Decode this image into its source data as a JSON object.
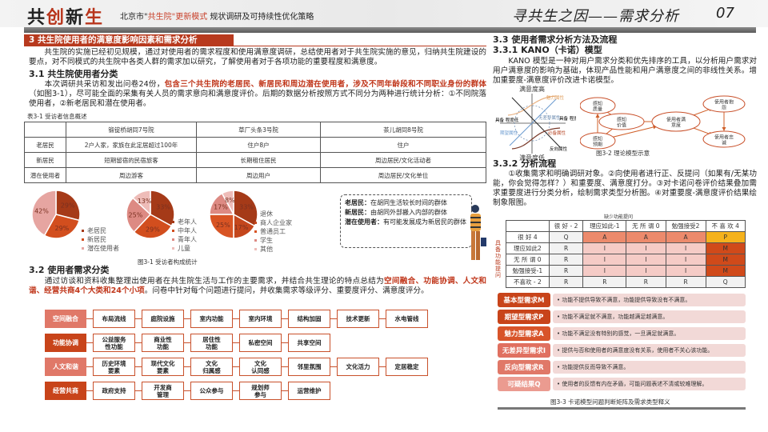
{
  "header": {
    "brand_1": "共",
    "brand_2": "创",
    "brand_3": "新",
    "brand_4": "生",
    "subtitle_pre": "北京市\"",
    "subtitle_red": "共生院\"更新模式",
    "subtitle_post": " 规状调研及可持续性优化策略",
    "section_title": "寻共生之因——需求分析",
    "page_number": "07"
  },
  "left": {
    "section_title": "3 共生院使用者的满意度影响因素和需求分析",
    "intro": "　　共生院的实施已经初见规模，通过对使用者的需求程度和使用满意度调研，总结使用者对于共生院实施的意见，归纳共生院建设的要点，对不同模式的共生院中各类人群的需求加以研究，了解使用者对于各项功能的重要程度和满意度。",
    "h31": "3.1 共生院使用者分类",
    "p31": [
      "　　本次调研共采访和发出问卷24份，",
      "包含三个共生院的老居民、新居民和周边潜在使用者，涉及不同年龄段和不同职业身份的群体",
      "（如图3-1），尽可能全面的采集有关人员的需求意向和满意度评价。后期的数据分析按照方式不同分为两种进行统计分析：①不同院落使用者，②新老居民和潜在使用者。"
    ],
    "table_caption": "表3-1 受访者信息概述",
    "table": {
      "headers": [
        "",
        "锻锭桥胡同7号院",
        "草厂头条3号院",
        "茶儿胡同8号院"
      ],
      "rows": [
        [
          "老居民",
          "2户人家，家族在此定居超过100年",
          "住户8户",
          "住户"
        ],
        [
          "新居民",
          "短期留宿的民宿旅客",
          "长期租住居民",
          "周边居民/文化活动者"
        ],
        [
          "潜在使用者",
          "周边游客",
          "周边用户",
          "周边居民/文化单位"
        ]
      ]
    },
    "figure_caption": "图3-1 受访者构成统计",
    "definitions": [
      {
        "term": "老居民：",
        "text": "在胡同生活较长时间的群体"
      },
      {
        "term": "新居民：",
        "text": "由胡同外部搬入内部的群体"
      },
      {
        "term": "潜在使用者：",
        "text": "有可能发展成为新居民的群体"
      }
    ],
    "h32": "3.2 使用者需求分类",
    "p32": [
      "　　通过访谈和资料收集整理出使用者在共生院生活与工作的主要需求，并结合共生理论的特点总结为",
      "空间融合、功能协调、人文和谐、经营共商4个大类和24个小项",
      "。问卷中针对每个问题进行提问，并收集需求等级评分、重要度评分、满意度评分。"
    ],
    "flow": [
      {
        "category": "空间融合",
        "color": "#e07868",
        "items": [
          "布局流线",
          "庭院设施",
          "室内功能",
          "室内环境",
          "结构加固",
          "技术更新",
          "水电管线"
        ]
      },
      {
        "category": "功能协调",
        "color": "#c8441a",
        "items": [
          "公益服务\n性功能",
          "商业性\n功能",
          "居住性\n功能",
          "私密空间",
          "共享空间"
        ]
      },
      {
        "category": "人文和谐",
        "color": "#e07868",
        "items": [
          "历史环境\n要素",
          "现代文化\n要素",
          "文化\n归属感",
          "文化\n认同感",
          "邻里氛围",
          "文化活力",
          "定居稳定"
        ]
      },
      {
        "category": "经营共商",
        "color": "#c8441a",
        "items": [
          "政府支持",
          "开发商\n管理",
          "公众参与",
          "规划师\n参与",
          "运营维护"
        ]
      }
    ]
  },
  "chart_data": [
    {
      "type": "pie",
      "categories": [
        "老居民",
        "新居民",
        "潜在使用者"
      ],
      "values": [
        29,
        29,
        42
      ],
      "colors": [
        "#a53a18",
        "#d24e1e",
        "#e6a5a1"
      ]
    },
    {
      "type": "pie",
      "categories": [
        "老年人",
        "中年人",
        "青年人",
        "儿童"
      ],
      "values": [
        33,
        29,
        25,
        13
      ],
      "colors": [
        "#a53a18",
        "#d24e1e",
        "#dd8a83",
        "#eebcb8"
      ]
    },
    {
      "type": "pie",
      "categories": [
        "退休",
        "商人企业家",
        "普通员工",
        "学生",
        "其他"
      ],
      "values": [
        33,
        17,
        25,
        17,
        8
      ],
      "colors": [
        "#a53a18",
        "#c4461c",
        "#d85424",
        "#dd8a83",
        "#eebcb8"
      ]
    }
  ],
  "right": {
    "h33": "3.3 使用者需求分析方法及流程",
    "h331": "3.3.1 KANO（卡诺）模型",
    "p331": "　　KANO 模型是一种对用户需求分类和优先排序的工具，以分析用户需求对用户满意度的影响为基础，体现产品性能和用户满意度之间的非线性关系。增加重要度-满意度评价改进卡诺模型。",
    "kano_labels": {
      "top": "满意度高",
      "bottom": "满意度低",
      "left": "具备\n程度低",
      "right": "具备\n程度高",
      "attractive": "魅力属性",
      "indifferent": "无差异属性",
      "expected": "期望属性",
      "must": "必备属性",
      "reverse": "反向属性"
    },
    "model_nodes": [
      "感知\n质量",
      "感知\n价值",
      "感知\n预期",
      "使用者满\n意度",
      "使用者抱\n怨",
      "使用者忠\n诚"
    ],
    "fig32_caption": "图3-2 理论模型示意",
    "h332": "3.3.2 分析流程",
    "p332": "　　①收集需求和明确调研对象。②向使用者进行正、反提问（如果有/无某功能，你会觉得怎样？）和重要度、满意度打分。③对卡诺问卷评价结果叠加需求重要度进行分类分析，绘制需求类型分析图。④对重要度-满意度评价结果绘制象限图。",
    "matrix_title": "缺少功能提问",
    "matrix_side": "具备功能提问",
    "matrix_headers": [
      "",
      "很 好 - 2",
      "理应如此-1",
      "无 所 谓 0",
      "勉强接受2",
      "不 喜 欢 4"
    ],
    "matrix_rows": [
      [
        "很 好 4",
        "Q",
        "A",
        "A",
        "A",
        "P"
      ],
      [
        "理应如此2",
        "R",
        "I",
        "I",
        "I",
        "M"
      ],
      [
        "无 所 谓 0",
        "R",
        "I",
        "I",
        "I",
        "M"
      ],
      [
        "勉强接受-1",
        "R",
        "I",
        "I",
        "I",
        "M"
      ],
      [
        "不喜欢 - 2",
        "R",
        "R",
        "R",
        "R",
        "Q"
      ]
    ],
    "types": [
      {
        "label": "基本型需求M",
        "color": "#c8441a",
        "desc": "• 功能不提供导致不满意，功能提供导致没有不满意。"
      },
      {
        "label": "期望型需求P",
        "color": "#c8441a",
        "desc": "• 功能不满足就不满意，功能越满足越满意。"
      },
      {
        "label": "魅力型需求A",
        "color": "#d8542a",
        "desc": "• 功能不满足没有特别的感觉，一旦满足就满意。"
      },
      {
        "label": "无差异型需求I",
        "color": "#e07060",
        "desc": "• 提供与否和使用者的满意度没有关系，使用者不关心该功能。"
      },
      {
        "label": "反向型需求R",
        "color": "#e07868",
        "desc": "• 功能提供反而导致不满意。"
      },
      {
        "label": "可疑结果Q",
        "color": "#eb9b90",
        "desc": "• 使用者的反馈有内在矛盾，可能问题表述不清或较难理解。"
      }
    ],
    "fig33_caption": "图3-3 卡诺模型问题判断矩阵及需求类型释义"
  }
}
